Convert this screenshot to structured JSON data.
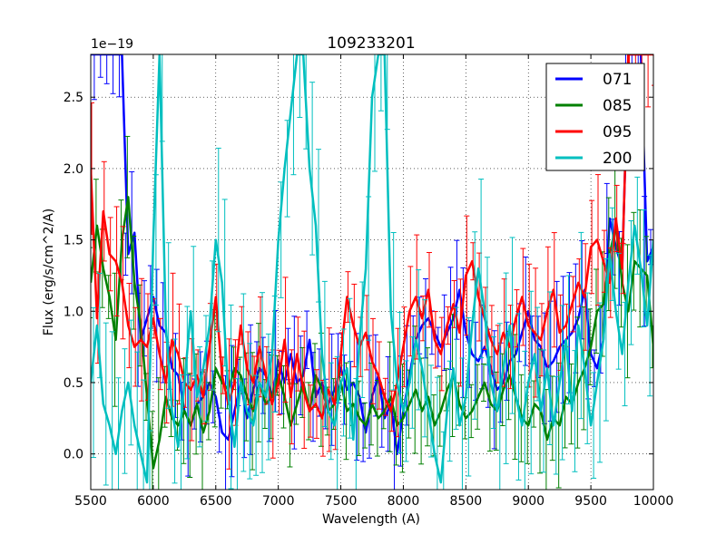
{
  "chart_data": {
    "type": "line",
    "title": "109233201",
    "xlabel": "Wavelength (A)",
    "ylabel": "Flux (erg/s/cm^2/A)",
    "offset_label": "1e−19",
    "xlim": [
      5500,
      10000
    ],
    "ylim": [
      -0.25,
      2.8
    ],
    "xticks": [
      5500,
      6000,
      6500,
      7000,
      7500,
      8000,
      8500,
      9000,
      9500,
      10000
    ],
    "xtick_labels": [
      "5500",
      "6000",
      "6500",
      "7000",
      "7500",
      "8000",
      "8500",
      "9000",
      "9500",
      "10000"
    ],
    "yticks": [
      0.0,
      0.5,
      1.0,
      1.5,
      2.0,
      2.5
    ],
    "ytick_labels": [
      "0.0",
      "0.5",
      "1.0",
      "1.5",
      "2.0",
      "2.5"
    ],
    "grid": true,
    "legend_position": "top-right",
    "series": [
      {
        "name": "071",
        "color": "#0000ff",
        "x": [
          5500,
          5550,
          5600,
          5650,
          5700,
          5750,
          5800,
          5850,
          5900,
          5950,
          6000,
          6050,
          6100,
          6150,
          6200,
          6250,
          6300,
          6350,
          6400,
          6450,
          6500,
          6550,
          6600,
          6650,
          6700,
          6750,
          6800,
          6850,
          6900,
          6950,
          7000,
          7050,
          7100,
          7150,
          7200,
          7250,
          7300,
          7350,
          7400,
          7450,
          7500,
          7550,
          7600,
          7650,
          7700,
          7750,
          7800,
          7850,
          7900,
          7950,
          8000,
          8050,
          8100,
          8150,
          8200,
          8250,
          8300,
          8350,
          8400,
          8450,
          8500,
          8550,
          8600,
          8650,
          8700,
          8750,
          8800,
          8850,
          8900,
          8950,
          9000,
          9050,
          9100,
          9150,
          9200,
          9250,
          9300,
          9350,
          9400,
          9450,
          9500,
          9550,
          9600,
          9650,
          9700,
          9750,
          9800,
          9850,
          9900,
          9950,
          10000
        ],
        "y": [
          2.8,
          2.8,
          2.8,
          2.8,
          2.8,
          2.8,
          1.4,
          1.55,
          0.8,
          0.95,
          1.1,
          0.9,
          0.85,
          0.6,
          0.55,
          0.3,
          0.2,
          0.35,
          0.4,
          0.5,
          0.4,
          0.15,
          0.1,
          0.3,
          0.5,
          0.25,
          0.45,
          0.6,
          0.55,
          0.4,
          0.65,
          0.5,
          0.7,
          0.5,
          0.55,
          0.8,
          0.4,
          0.5,
          0.35,
          0.45,
          0.6,
          0.45,
          0.5,
          0.4,
          0.15,
          0.4,
          0.55,
          0.25,
          0.35,
          0.0,
          0.3,
          0.55,
          0.8,
          0.9,
          0.95,
          0.85,
          0.75,
          0.85,
          0.95,
          1.15,
          0.85,
          0.7,
          0.65,
          0.75,
          0.6,
          0.45,
          0.5,
          0.65,
          0.7,
          0.85,
          1.0,
          0.8,
          0.75,
          0.6,
          0.65,
          0.75,
          0.8,
          0.85,
          0.95,
          1.15,
          0.7,
          0.6,
          0.8,
          1.65,
          1.45,
          1.3,
          2.8,
          2.8,
          2.8,
          1.35,
          1.45
        ]
      },
      {
        "name": "085",
        "color": "#008000",
        "x": [
          5500,
          5550,
          5600,
          5650,
          5700,
          5750,
          5800,
          5850,
          5900,
          5950,
          6000,
          6050,
          6100,
          6150,
          6200,
          6250,
          6300,
          6350,
          6400,
          6450,
          6500,
          6550,
          6600,
          6650,
          6700,
          6750,
          6800,
          6850,
          6900,
          6950,
          7000,
          7050,
          7100,
          7150,
          7200,
          7250,
          7300,
          7350,
          7400,
          7450,
          7500,
          7550,
          7600,
          7650,
          7700,
          7750,
          7800,
          7850,
          7900,
          7950,
          8000,
          8050,
          8100,
          8150,
          8200,
          8250,
          8300,
          8350,
          8400,
          8450,
          8500,
          8550,
          8600,
          8650,
          8700,
          8750,
          8800,
          8850,
          8900,
          8950,
          9000,
          9050,
          9100,
          9150,
          9200,
          9250,
          9300,
          9350,
          9400,
          9450,
          9500,
          9550,
          9600,
          9650,
          9700,
          9750,
          9800,
          9850,
          9900,
          9950,
          10000
        ],
        "y": [
          1.2,
          1.6,
          1.3,
          1.1,
          0.8,
          1.5,
          1.8,
          1.2,
          0.9,
          0.4,
          -0.1,
          0.1,
          0.4,
          0.25,
          0.2,
          0.3,
          0.2,
          0.35,
          0.15,
          0.3,
          0.6,
          0.5,
          0.45,
          0.6,
          0.55,
          0.4,
          0.3,
          0.5,
          0.35,
          0.4,
          0.55,
          0.4,
          0.2,
          0.35,
          0.5,
          0.3,
          0.55,
          0.45,
          0.3,
          0.35,
          0.5,
          0.3,
          0.35,
          0.25,
          0.2,
          0.35,
          0.25,
          0.3,
          0.4,
          0.2,
          0.25,
          0.35,
          0.45,
          0.3,
          0.4,
          0.2,
          0.3,
          0.45,
          0.55,
          0.35,
          0.25,
          0.3,
          0.4,
          0.5,
          0.35,
          0.3,
          0.45,
          0.55,
          0.4,
          0.25,
          0.2,
          0.35,
          0.3,
          0.1,
          0.25,
          0.2,
          0.4,
          0.35,
          0.5,
          0.6,
          0.75,
          1.0,
          1.05,
          1.4,
          1.6,
          1.2,
          1.0,
          1.35,
          1.3,
          1.25,
          0.75
        ]
      },
      {
        "name": "095",
        "color": "#ff0000",
        "x": [
          5500,
          5550,
          5600,
          5650,
          5700,
          5750,
          5800,
          5850,
          5900,
          5950,
          6000,
          6050,
          6100,
          6150,
          6200,
          6250,
          6300,
          6350,
          6400,
          6450,
          6500,
          6550,
          6600,
          6650,
          6700,
          6750,
          6800,
          6850,
          6900,
          6950,
          7000,
          7050,
          7100,
          7150,
          7200,
          7250,
          7300,
          7350,
          7400,
          7450,
          7500,
          7550,
          7600,
          7650,
          7700,
          7750,
          7800,
          7850,
          7900,
          7950,
          8000,
          8050,
          8100,
          8150,
          8200,
          8250,
          8300,
          8350,
          8400,
          8450,
          8500,
          8550,
          8600,
          8650,
          8700,
          8750,
          8800,
          8850,
          8900,
          8950,
          9000,
          9050,
          9100,
          9150,
          9200,
          9250,
          9300,
          9350,
          9400,
          9450,
          9500,
          9550,
          9600,
          9650,
          9700,
          9750,
          9800,
          9850,
          9900,
          9950,
          10000
        ],
        "y": [
          2.0,
          0.95,
          1.7,
          1.4,
          1.35,
          1.2,
          0.9,
          0.75,
          0.8,
          0.75,
          0.95,
          0.7,
          0.5,
          0.8,
          0.7,
          0.5,
          0.45,
          0.55,
          0.4,
          0.75,
          1.1,
          0.55,
          0.35,
          0.5,
          0.9,
          0.6,
          0.5,
          0.75,
          0.55,
          0.35,
          0.5,
          0.8,
          0.4,
          0.7,
          0.45,
          0.3,
          0.35,
          0.25,
          0.45,
          0.35,
          0.7,
          1.1,
          0.9,
          0.75,
          0.85,
          0.65,
          0.55,
          0.4,
          0.3,
          0.5,
          0.75,
          1.0,
          1.1,
          0.95,
          1.15,
          0.8,
          0.7,
          0.9,
          1.05,
          0.85,
          1.25,
          1.35,
          1.1,
          0.95,
          0.8,
          0.7,
          0.85,
          0.75,
          0.95,
          1.1,
          0.9,
          0.85,
          0.8,
          1.0,
          1.15,
          0.85,
          0.9,
          1.05,
          1.2,
          1.1,
          1.45,
          1.5,
          1.35,
          1.2,
          1.65,
          1.3,
          2.8,
          2.8,
          2.8,
          2.8,
          2.8
        ]
      },
      {
        "name": "200",
        "color": "#00bfbf",
        "x": [
          5500,
          5550,
          5600,
          5650,
          5700,
          5750,
          5800,
          5850,
          5900,
          5950,
          6000,
          6050,
          6100,
          6150,
          6200,
          6250,
          6300,
          6350,
          6400,
          6450,
          6500,
          6550,
          6600,
          6650,
          6700,
          6750,
          6800,
          6850,
          6900,
          6950,
          7000,
          7050,
          7100,
          7150,
          7200,
          7250,
          7300,
          7350,
          7400,
          7450,
          7500,
          7550,
          7600,
          7650,
          7700,
          7750,
          7800,
          7850,
          7900,
          7950,
          8000,
          8050,
          8100,
          8150,
          8200,
          8250,
          8300,
          8350,
          8400,
          8450,
          8500,
          8550,
          8600,
          8650,
          8700,
          8750,
          8800,
          8850,
          8900,
          8950,
          9000,
          9050,
          9100,
          9150,
          9200,
          9250,
          9300,
          9350,
          9400,
          9450,
          9500,
          9550,
          9600,
          9650,
          9700,
          9750,
          9800,
          9850,
          9900,
          9950,
          10000
        ],
        "y": [
          0.5,
          0.9,
          0.35,
          0.2,
          0.0,
          0.3,
          0.5,
          0.2,
          0.0,
          -0.2,
          1.5,
          2.8,
          0.9,
          0.3,
          0.05,
          0.5,
          1.0,
          0.4,
          0.6,
          0.9,
          1.5,
          1.2,
          0.4,
          0.05,
          0.5,
          0.3,
          0.2,
          0.5,
          0.4,
          0.7,
          1.5,
          2.0,
          2.4,
          2.8,
          2.8,
          2.0,
          1.6,
          0.7,
          0.3,
          0.2,
          0.5,
          0.6,
          0.1,
          0.8,
          1.3,
          2.5,
          2.8,
          2.8,
          1.0,
          0.5,
          0.3,
          0.5,
          0.8,
          0.6,
          0.3,
          0.0,
          -0.2,
          0.3,
          0.6,
          0.2,
          0.4,
          0.9,
          1.3,
          1.0,
          0.5,
          0.3,
          0.6,
          0.9,
          0.4,
          0.2,
          0.5,
          0.7,
          0.3,
          0.6,
          0.2,
          0.5,
          0.8,
          0.3,
          0.9,
          0.6,
          0.2,
          0.5,
          0.8,
          1.4,
          1.0,
          0.7,
          1.2,
          1.6,
          1.3,
          0.9,
          1.5
        ]
      }
    ]
  }
}
